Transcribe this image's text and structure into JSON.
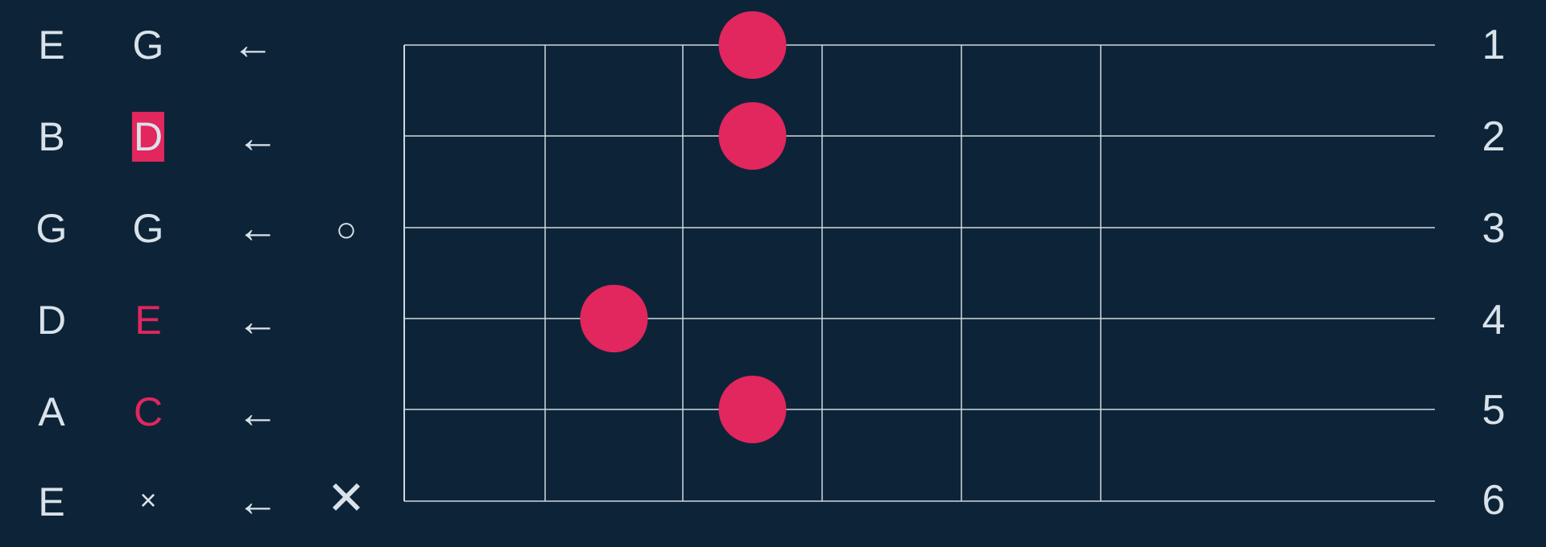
{
  "colors": {
    "background": "#0d2438",
    "text": "#d9e2ea",
    "accent": "#e2265e",
    "grid": "#cfd8e0"
  },
  "strings": [
    {
      "number": "1",
      "open_note": "E",
      "fretted_note": "G",
      "note_style": "normal",
      "arrow": "←",
      "marker": ""
    },
    {
      "number": "2",
      "open_note": "B",
      "fretted_note": "D",
      "note_style": "highlighted",
      "arrow": "←",
      "marker": ""
    },
    {
      "number": "3",
      "open_note": "G",
      "fretted_note": "G",
      "note_style": "normal",
      "arrow": "←",
      "marker": "○"
    },
    {
      "number": "4",
      "open_note": "D",
      "fretted_note": "E",
      "note_style": "accent",
      "arrow": "←",
      "marker": ""
    },
    {
      "number": "5",
      "open_note": "A",
      "fretted_note": "C",
      "note_style": "accent",
      "arrow": "←",
      "marker": ""
    },
    {
      "number": "6",
      "open_note": "E",
      "fretted_note": "×",
      "note_style": "muted",
      "arrow": "←",
      "marker": "✕"
    }
  ],
  "fretboard": {
    "fret_spaces": 6,
    "dots": [
      {
        "string": 1,
        "fret": 3
      },
      {
        "string": 2,
        "fret": 3
      },
      {
        "string": 4,
        "fret": 2
      },
      {
        "string": 5,
        "fret": 3
      }
    ]
  }
}
